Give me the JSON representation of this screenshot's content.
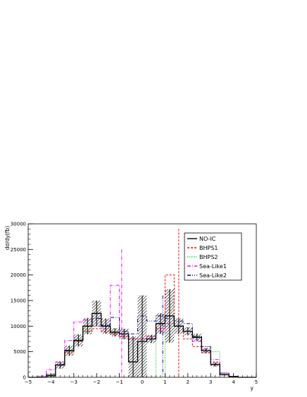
{
  "chart_data": {
    "type": "histogram",
    "xlabel": "y",
    "ylabel": "dσ/dy(fb)",
    "xlim": [
      -5,
      5
    ],
    "ylim": [
      0,
      30000
    ],
    "xticks": [
      -5,
      -4,
      -3,
      -2,
      -1,
      0,
      1,
      2,
      3,
      4,
      5
    ],
    "yticks": [
      0,
      5000,
      10000,
      15000,
      20000,
      25000,
      30000
    ],
    "legend_position": "top-right",
    "bin_edges": [
      -5.0,
      -4.6,
      -4.2,
      -3.8,
      -3.4,
      -3.0,
      -2.6,
      -2.2,
      -1.8,
      -1.4,
      -1.0,
      -0.6,
      -0.2,
      0.2,
      0.6,
      1.0,
      1.4,
      1.8,
      2.2,
      2.6,
      3.0,
      3.4,
      3.8,
      4.2,
      4.6,
      5.0
    ],
    "series": [
      {
        "name": "NO-IC",
        "color": "#000000",
        "style": "solid",
        "values": [
          0,
          50,
          300,
          2400,
          5200,
          7200,
          10000,
          12500,
          10000,
          8800,
          8500,
          3000,
          7000,
          7500,
          10500,
          12000,
          10000,
          9000,
          7800,
          5200,
          2500,
          500,
          150,
          0,
          0
        ],
        "errors": [
          0,
          50,
          400,
          700,
          1000,
          1200,
          1600,
          2500,
          1500,
          800,
          1000,
          5000,
          9000,
          800,
          2000,
          5200,
          1500,
          800,
          700,
          500,
          400,
          150,
          100,
          0,
          0
        ]
      },
      {
        "name": "BHPS1",
        "color": "#ff0000",
        "style": "dashed",
        "values": [
          0,
          50,
          400,
          2400,
          4800,
          7000,
          9000,
          9500,
          9000,
          8500,
          8000,
          7500,
          7500,
          8000,
          9500,
          20000,
          10000,
          7500,
          6000,
          4800,
          3000,
          800,
          100,
          0,
          0
        ],
        "peaks": [
          {
            "x": 1.6,
            "y": 29000
          }
        ]
      },
      {
        "name": "BHPS2",
        "color": "#00cc00",
        "style": "dotted",
        "values": [
          0,
          50,
          400,
          2400,
          5000,
          7500,
          9500,
          10000,
          9500,
          9000,
          7500,
          7500,
          7500,
          8000,
          0,
          10000,
          10000,
          9000,
          8000,
          6000,
          5000,
          500,
          100,
          0,
          0
        ]
      },
      {
        "name": "Sea-Like1",
        "color": "#ff00ff",
        "style": "dashdot",
        "values": [
          0,
          300,
          1500,
          3000,
          7200,
          10800,
          11200,
          10000,
          9500,
          18000,
          8000,
          7500,
          7500,
          8000,
          9000,
          10500,
          10000,
          9000,
          7000,
          5500,
          3500,
          800,
          200,
          0,
          0
        ],
        "peaks": [
          {
            "x": -0.9,
            "y": 25000
          }
        ]
      },
      {
        "name": "Sea-Like2",
        "color": "#000099",
        "style": "dashdotdot",
        "values": [
          0,
          50,
          600,
          2500,
          5300,
          7300,
          10000,
          11500,
          10200,
          11700,
          9000,
          8500,
          12000,
          11000,
          12000,
          11500,
          11000,
          10500,
          8000,
          6000,
          2500,
          800,
          150,
          0,
          0
        ],
        "peaks": [
          {
            "x": 0.9,
            "y": 16000
          }
        ]
      }
    ]
  },
  "legend": {
    "items": [
      {
        "label": "NO-IC",
        "color": "#000000",
        "dash": ""
      },
      {
        "label": "BHPS1",
        "color": "#ff0000",
        "dash": "3,2"
      },
      {
        "label": "BHPS2",
        "color": "#00cc00",
        "dash": "1,1.5"
      },
      {
        "label": "Sea-Like1",
        "color": "#ff00ff",
        "dash": "5,2,1,2"
      },
      {
        "label": "Sea-Like2",
        "color": "#000099",
        "dash": "5,2,1,2,1,2"
      }
    ]
  }
}
